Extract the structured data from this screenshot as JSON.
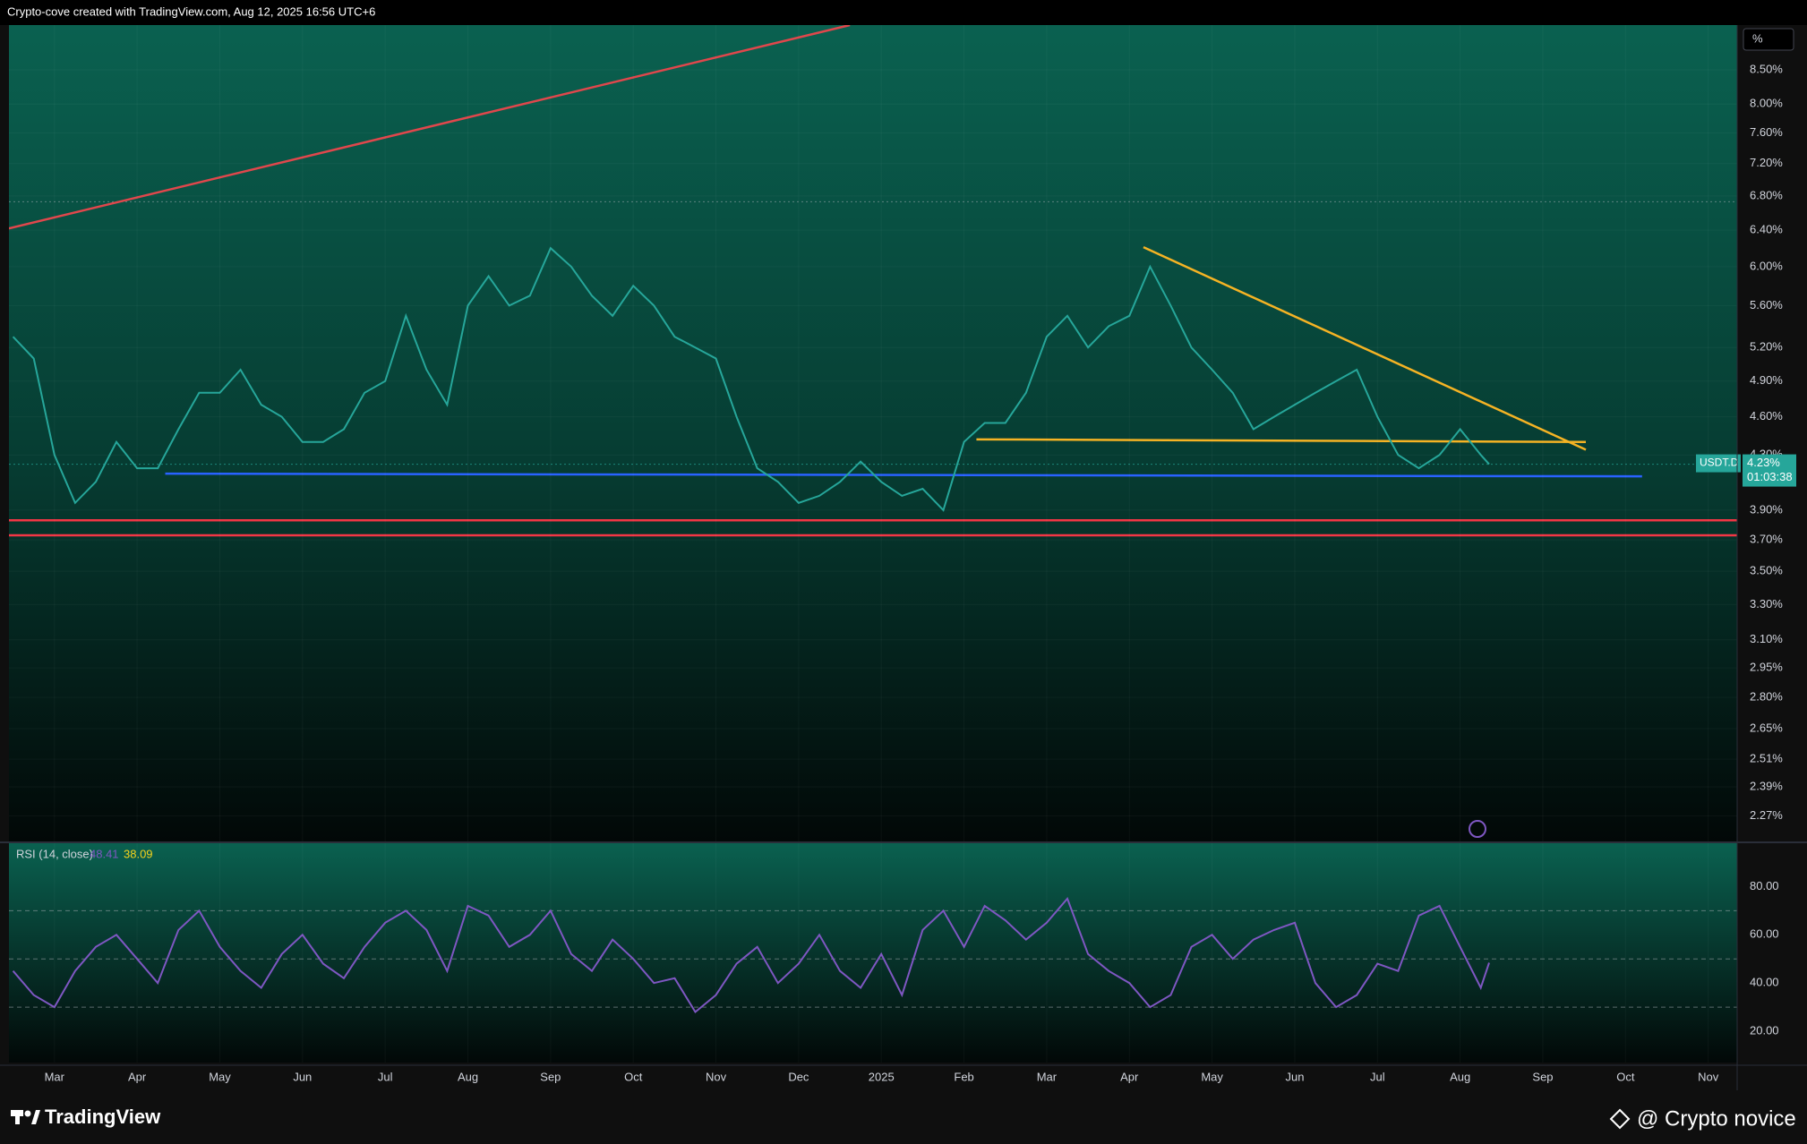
{
  "header": {
    "text": "Crypto-cove created with TradingView.com, Aug 12, 2025 16:56 UTC+6",
    "scale_button": "%"
  },
  "chart_data": [
    {
      "type": "line",
      "symbol": "USDT.D",
      "countdown": "01:03:38",
      "log_scale": true,
      "grid": true,
      "xlim": [
        -0.55,
        20.35
      ],
      "xticks": [
        {
          "value": 0,
          "label": "Mar"
        },
        {
          "value": 1,
          "label": "Apr"
        },
        {
          "value": 2,
          "label": "May"
        },
        {
          "value": 3,
          "label": "Jun"
        },
        {
          "value": 4,
          "label": "Jul"
        },
        {
          "value": 5,
          "label": "Aug"
        },
        {
          "value": 6,
          "label": "Sep"
        },
        {
          "value": 7,
          "label": "Oct"
        },
        {
          "value": 8,
          "label": "Nov"
        },
        {
          "value": 9,
          "label": "Dec"
        },
        {
          "value": 10,
          "label": "2025"
        },
        {
          "value": 11,
          "label": "Feb"
        },
        {
          "value": 12,
          "label": "Mar"
        },
        {
          "value": 13,
          "label": "Apr"
        },
        {
          "value": 14,
          "label": "May"
        },
        {
          "value": 15,
          "label": "Jun"
        },
        {
          "value": 16,
          "label": "Jul"
        },
        {
          "value": 17,
          "label": "Aug"
        },
        {
          "value": 18,
          "label": "Sep"
        },
        {
          "value": 19,
          "label": "Oct"
        },
        {
          "value": 20,
          "label": "Nov"
        }
      ],
      "ylim": [
        2.17,
        9.2
      ],
      "yticks": [
        {
          "value": 8.5,
          "label": "8.50%"
        },
        {
          "value": 8,
          "label": "8.00%"
        },
        {
          "value": 7.6,
          "label": "7.60%"
        },
        {
          "value": 7.2,
          "label": "7.20%"
        },
        {
          "value": 6.8,
          "label": "6.80%"
        },
        {
          "value": 6.4,
          "label": "6.40%"
        },
        {
          "value": 6,
          "label": "6.00%"
        },
        {
          "value": 5.6,
          "label": "5.60%"
        },
        {
          "value": 5.2,
          "label": "5.20%"
        },
        {
          "value": 4.9,
          "label": "4.90%"
        },
        {
          "value": 4.6,
          "label": "4.60%"
        },
        {
          "value": 4.3,
          "label": "4.30%"
        },
        {
          "value": 3.9,
          "label": "3.90%"
        },
        {
          "value": 3.7,
          "label": "3.70%"
        },
        {
          "value": 3.5,
          "label": "3.50%"
        },
        {
          "value": 3.3,
          "label": "3.30%"
        },
        {
          "value": 3.1,
          "label": "3.10%"
        },
        {
          "value": 2.95,
          "label": "2.95%"
        },
        {
          "value": 2.8,
          "label": "2.80%"
        },
        {
          "value": 2.65,
          "label": "2.65%"
        },
        {
          "value": 2.51,
          "label": "2.51%"
        },
        {
          "value": 2.39,
          "label": "2.39%"
        },
        {
          "value": 2.27,
          "label": "2.27%"
        }
      ],
      "x": [
        -0.5,
        -0.25,
        0,
        0.25,
        0.5,
        0.75,
        1,
        1.25,
        1.5,
        1.75,
        2,
        2.25,
        2.5,
        2.75,
        3,
        3.25,
        3.5,
        3.75,
        4,
        4.25,
        4.5,
        4.75,
        5,
        5.25,
        5.5,
        5.75,
        6,
        6.25,
        6.5,
        6.75,
        7,
        7.25,
        7.5,
        7.75,
        8,
        8.25,
        8.5,
        8.75,
        9,
        9.25,
        9.5,
        9.75,
        10,
        10.25,
        10.5,
        10.75,
        11,
        11.25,
        11.5,
        11.75,
        12,
        12.25,
        12.5,
        12.75,
        13,
        13.25,
        13.5,
        13.75,
        14,
        14.25,
        14.5,
        14.75,
        15,
        15.25,
        15.5,
        15.75,
        16,
        16.25,
        16.5,
        16.75,
        17,
        17.25,
        17.35
      ],
      "series": [
        {
          "name": "USDT.D",
          "color": "#26a69a",
          "values": [
            5.3,
            5.1,
            4.3,
            3.95,
            4.1,
            4.4,
            4.2,
            4.2,
            4.5,
            4.8,
            4.8,
            5.0,
            4.7,
            4.6,
            4.4,
            4.4,
            4.5,
            4.8,
            4.9,
            5.5,
            5.0,
            4.7,
            5.6,
            5.9,
            5.6,
            5.7,
            6.2,
            6.0,
            5.7,
            5.5,
            5.8,
            5.6,
            5.3,
            5.2,
            5.1,
            4.6,
            4.2,
            4.1,
            3.95,
            4.0,
            4.1,
            4.25,
            4.1,
            4.0,
            4.05,
            3.9,
            4.4,
            4.55,
            4.55,
            4.8,
            5.3,
            5.5,
            5.2,
            5.4,
            5.5,
            6.0,
            5.6,
            5.2,
            5.0,
            4.8,
            4.5,
            4.6,
            4.7,
            4.8,
            4.9,
            5.0,
            4.6,
            4.3,
            4.2,
            4.3,
            4.5,
            4.3,
            4.23
          ]
        }
      ],
      "last_price": {
        "value": 4.23,
        "label": "4.23%"
      },
      "lines": [
        {
          "color": "#e0474c",
          "x": [
            -0.55,
            9.62
          ],
          "y": [
            6.42,
            9.2
          ]
        },
        {
          "color": "#f5b324",
          "x": [
            13.17,
            18.52
          ],
          "y": [
            6.21,
            4.34
          ]
        },
        {
          "color": "#f5b324",
          "x": [
            11.15,
            18.52
          ],
          "y": [
            4.42,
            4.4
          ]
        },
        {
          "color": "#2962ff",
          "x": [
            1.34,
            19.2
          ],
          "y": [
            4.16,
            4.14
          ]
        },
        {
          "color": "#f23645",
          "x": [
            -0.55,
            20.35
          ],
          "y": [
            3.83,
            3.83
          ]
        },
        {
          "color": "#f23645",
          "x": [
            -0.55,
            20.35
          ],
          "y": [
            3.73,
            3.73
          ]
        }
      ],
      "dotted_level": 6.73
    },
    {
      "type": "line",
      "title": "RSI (14, close)",
      "ma_value": 38.09,
      "xlim": [
        -0.55,
        20.35
      ],
      "ylim": [
        7,
        98
      ],
      "yticks": [
        {
          "value": 80,
          "label": "80.00"
        },
        {
          "value": 60,
          "label": "60.00"
        },
        {
          "value": 40,
          "label": "40.00"
        },
        {
          "value": 20,
          "label": "20.00"
        }
      ],
      "band_levels": [
        70,
        50,
        30
      ],
      "x": [
        -0.5,
        -0.25,
        0,
        0.25,
        0.5,
        0.75,
        1,
        1.25,
        1.5,
        1.75,
        2,
        2.25,
        2.5,
        2.75,
        3,
        3.25,
        3.5,
        3.75,
        4,
        4.25,
        4.5,
        4.75,
        5,
        5.25,
        5.5,
        5.75,
        6,
        6.25,
        6.5,
        6.75,
        7,
        7.25,
        7.5,
        7.75,
        8,
        8.25,
        8.5,
        8.75,
        9,
        9.25,
        9.5,
        9.75,
        10,
        10.25,
        10.5,
        10.75,
        11,
        11.25,
        11.5,
        11.75,
        12,
        12.25,
        12.5,
        12.75,
        13,
        13.25,
        13.5,
        13.75,
        14,
        14.25,
        14.5,
        14.75,
        15,
        15.25,
        15.5,
        15.75,
        16,
        16.25,
        16.5,
        16.75,
        17,
        17.25,
        17.35
      ],
      "series": [
        {
          "name": "RSI",
          "color": "#7e57c2",
          "values": [
            45,
            35,
            30,
            45,
            55,
            60,
            50,
            40,
            62,
            70,
            55,
            45,
            38,
            52,
            60,
            48,
            42,
            55,
            65,
            70,
            62,
            45,
            72,
            68,
            55,
            60,
            70,
            52,
            45,
            58,
            50,
            40,
            42,
            28,
            35,
            48,
            55,
            40,
            48,
            60,
            45,
            38,
            52,
            35,
            62,
            70,
            55,
            72,
            66,
            58,
            65,
            75,
            52,
            45,
            40,
            30,
            35,
            55,
            60,
            50,
            58,
            62,
            65,
            40,
            30,
            35,
            48,
            45,
            68,
            72,
            55,
            38,
            48.41
          ]
        }
      ]
    }
  ],
  "footer": {
    "brand": "TradingView",
    "author": "@ Crypto novice"
  }
}
